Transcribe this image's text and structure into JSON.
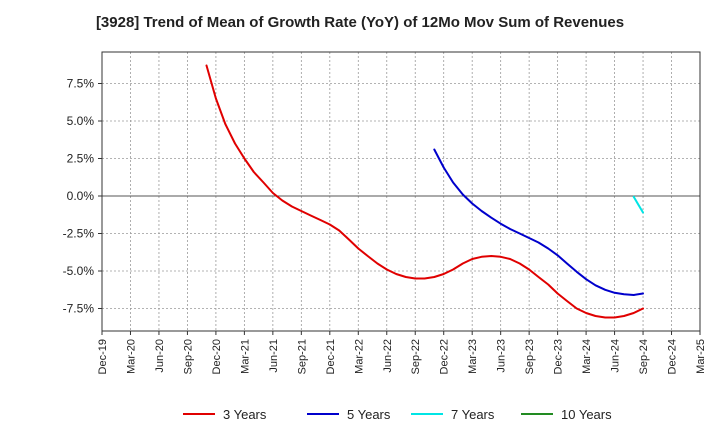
{
  "chart_data": {
    "type": "line",
    "title": "[3928]  Trend of Mean of Growth Rate (YoY) of 12Mo Mov Sum of Revenues",
    "xlabel": "",
    "ylabel": "",
    "x_ticks": [
      "Dec-19",
      "Mar-20",
      "Jun-20",
      "Sep-20",
      "Dec-20",
      "Mar-21",
      "Jun-21",
      "Sep-21",
      "Dec-21",
      "Mar-22",
      "Jun-22",
      "Sep-22",
      "Dec-22",
      "Mar-23",
      "Jun-23",
      "Sep-23",
      "Dec-23",
      "Mar-24",
      "Jun-24",
      "Sep-24",
      "Dec-24",
      "Mar-25"
    ],
    "y_ticks": [
      "7.5%",
      "5.0%",
      "2.5%",
      "0.0%",
      "-2.5%",
      "-5.0%",
      "-7.5%"
    ],
    "y_tick_values": [
      7.5,
      5.0,
      2.5,
      0.0,
      -2.5,
      -5.0,
      -7.5
    ],
    "ylim": [
      -9.0,
      9.6
    ],
    "xlim": [
      0,
      21
    ],
    "grid": true,
    "legend_position": "bottom",
    "series": [
      {
        "name": "3 Years",
        "color": "#e00000",
        "points": [
          [
            3.67,
            8.7
          ],
          [
            4.0,
            6.5
          ],
          [
            4.33,
            4.8
          ],
          [
            4.67,
            3.5
          ],
          [
            5.0,
            2.5
          ],
          [
            5.33,
            1.6
          ],
          [
            5.67,
            0.9
          ],
          [
            6.0,
            0.2
          ],
          [
            6.33,
            -0.3
          ],
          [
            6.67,
            -0.7
          ],
          [
            7.0,
            -1.0
          ],
          [
            7.33,
            -1.3
          ],
          [
            7.67,
            -1.6
          ],
          [
            8.0,
            -1.9
          ],
          [
            8.33,
            -2.3
          ],
          [
            8.67,
            -2.9
          ],
          [
            9.0,
            -3.5
          ],
          [
            9.33,
            -4.0
          ],
          [
            9.67,
            -4.5
          ],
          [
            10.0,
            -4.9
          ],
          [
            10.33,
            -5.2
          ],
          [
            10.67,
            -5.4
          ],
          [
            11.0,
            -5.5
          ],
          [
            11.33,
            -5.5
          ],
          [
            11.67,
            -5.4
          ],
          [
            12.0,
            -5.2
          ],
          [
            12.33,
            -4.9
          ],
          [
            12.67,
            -4.5
          ],
          [
            13.0,
            -4.2
          ],
          [
            13.33,
            -4.05
          ],
          [
            13.67,
            -4.0
          ],
          [
            14.0,
            -4.05
          ],
          [
            14.33,
            -4.2
          ],
          [
            14.67,
            -4.5
          ],
          [
            15.0,
            -4.9
          ],
          [
            15.33,
            -5.4
          ],
          [
            15.67,
            -5.9
          ],
          [
            16.0,
            -6.5
          ],
          [
            16.33,
            -7.0
          ],
          [
            16.67,
            -7.5
          ],
          [
            17.0,
            -7.8
          ],
          [
            17.33,
            -8.0
          ],
          [
            17.67,
            -8.1
          ],
          [
            18.0,
            -8.1
          ],
          [
            18.33,
            -8.0
          ],
          [
            18.67,
            -7.8
          ],
          [
            19.0,
            -7.5
          ]
        ]
      },
      {
        "name": "5 Years",
        "color": "#0000cc",
        "points": [
          [
            11.67,
            3.1
          ],
          [
            12.0,
            1.9
          ],
          [
            12.33,
            0.9
          ],
          [
            12.67,
            0.1
          ],
          [
            13.0,
            -0.5
          ],
          [
            13.33,
            -1.0
          ],
          [
            13.67,
            -1.45
          ],
          [
            14.0,
            -1.85
          ],
          [
            14.33,
            -2.2
          ],
          [
            14.67,
            -2.5
          ],
          [
            15.0,
            -2.8
          ],
          [
            15.33,
            -3.1
          ],
          [
            15.67,
            -3.5
          ],
          [
            16.0,
            -3.95
          ],
          [
            16.33,
            -4.5
          ],
          [
            16.67,
            -5.05
          ],
          [
            17.0,
            -5.55
          ],
          [
            17.33,
            -5.95
          ],
          [
            17.67,
            -6.25
          ],
          [
            18.0,
            -6.45
          ],
          [
            18.33,
            -6.55
          ],
          [
            18.67,
            -6.6
          ],
          [
            19.0,
            -6.5
          ]
        ]
      },
      {
        "name": "7 Years",
        "color": "#00e5e5",
        "points": [
          [
            18.67,
            -0.05
          ],
          [
            19.0,
            -1.1
          ]
        ]
      },
      {
        "name": "10 Years",
        "color": "#228b22",
        "points": []
      }
    ]
  }
}
